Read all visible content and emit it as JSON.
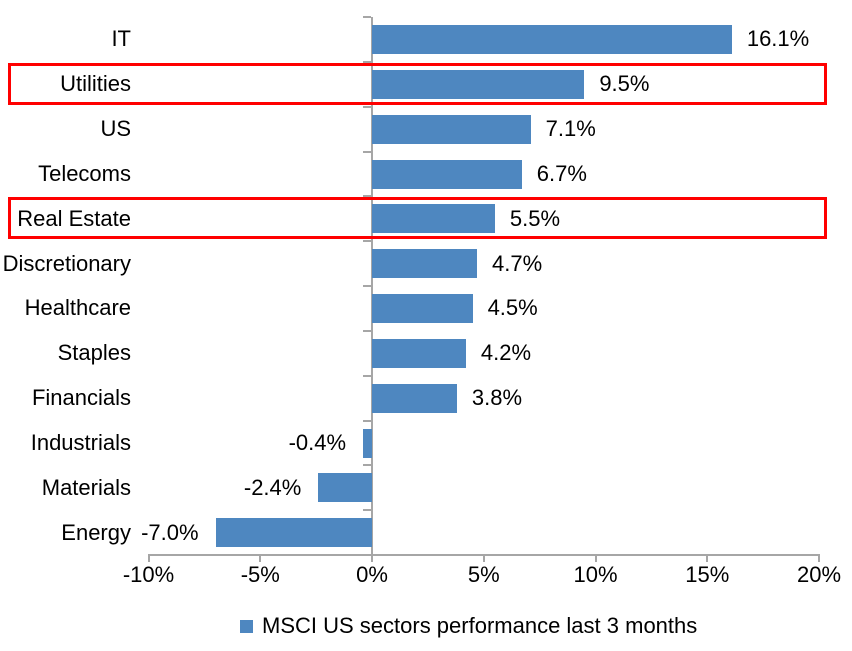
{
  "chart_data": {
    "type": "bar",
    "orientation": "horizontal",
    "categories": [
      "IT",
      "Utilities",
      "US",
      "Telecoms",
      "Real Estate",
      "Discretionary",
      "Healthcare",
      "Staples",
      "Financials",
      "Industrials",
      "Materials",
      "Energy"
    ],
    "values": [
      16.1,
      9.5,
      7.1,
      6.7,
      5.5,
      4.7,
      4.5,
      4.2,
      3.8,
      -0.4,
      -2.4,
      -7.0
    ],
    "value_labels": [
      "16.1%",
      "9.5%",
      "7.1%",
      "6.7%",
      "5.5%",
      "4.7%",
      "4.5%",
      "4.2%",
      "3.8%",
      "-0.4%",
      "-2.4%",
      "-7.0%"
    ],
    "xlim": [
      -10,
      20
    ],
    "x_ticks": [
      -10,
      -5,
      0,
      5,
      10,
      15,
      20
    ],
    "x_tick_labels": [
      "-10%",
      "-5%",
      "0%",
      "5%",
      "10%",
      "15%",
      "20%"
    ],
    "grid": "off",
    "legend": "MSCI US sectors performance last 3 months",
    "legend_position": "bottom",
    "bar_color": "#4E87C0",
    "axis_color": "#A6A6A6",
    "highlight_color": "#FF0000",
    "highlighted_categories": [
      "Utilities",
      "Real Estate"
    ]
  }
}
